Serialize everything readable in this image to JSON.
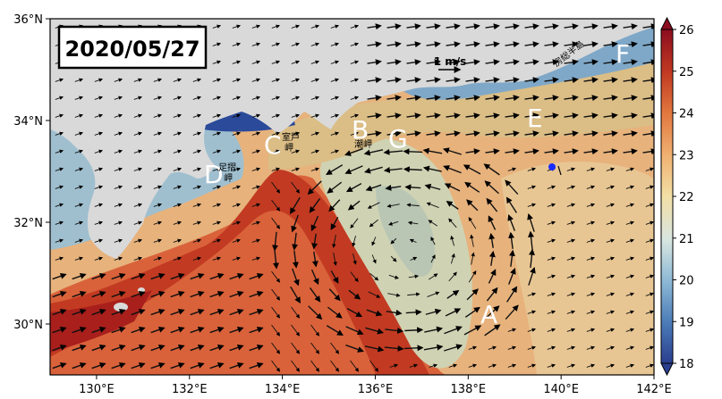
{
  "date_label": "2020/05/27",
  "velocity_scale": {
    "label": "1 m/s"
  },
  "axes": {
    "x_ticks": [
      "130°E",
      "132°E",
      "134°E",
      "136°E",
      "138°E",
      "140°E",
      "142°E"
    ],
    "y_ticks": [
      "36°N",
      "34°N",
      "32°N",
      "30°N"
    ],
    "lon_range": [
      129,
      142
    ],
    "lat_range": [
      29,
      36
    ]
  },
  "colorbar": {
    "ticks": [
      "26",
      "25",
      "24",
      "23",
      "22",
      "21",
      "20",
      "19",
      "18"
    ],
    "range": [
      18,
      26
    ],
    "colors": [
      "#2b3e8f",
      "#4a7bb7",
      "#8fbad6",
      "#d8e6e0",
      "#f2dfa5",
      "#f0b272",
      "#e2773f",
      "#c23a22",
      "#8c0d1f"
    ]
  },
  "region_labels": [
    "A",
    "B",
    "C",
    "D",
    "E",
    "F",
    "G"
  ],
  "place_labels": {
    "muroto": "室戸\n岬",
    "ashizuri": "足摺\n岬",
    "shiono": "潮岬",
    "boso": "房総半島"
  },
  "colors": {
    "land": "#d9d9d9",
    "warm_core": "#c9402a",
    "cold_eddy": "#cfd3b3",
    "marker": "#1a2bff"
  }
}
